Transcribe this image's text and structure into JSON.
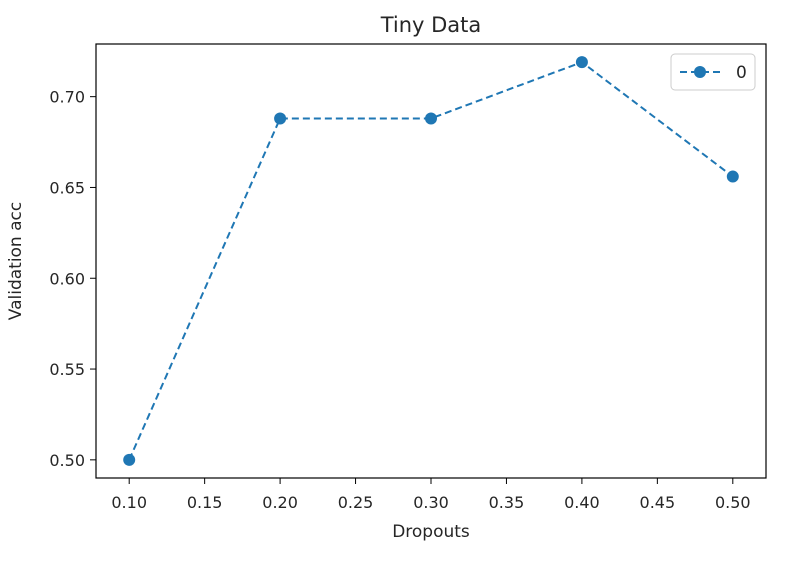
{
  "chart_data": {
    "type": "line",
    "title": "Tiny Data",
    "xlabel": "Dropouts",
    "ylabel": "Validation acc",
    "x": [
      0.1,
      0.2,
      0.3,
      0.4,
      0.5
    ],
    "series": [
      {
        "name": "0",
        "values": [
          0.5,
          0.688,
          0.688,
          0.719,
          0.656
        ],
        "color": "#1f77b4",
        "line_style": "dashed",
        "marker": "circle"
      }
    ],
    "xlim": [
      0.078,
      0.522
    ],
    "ylim": [
      0.49,
      0.729
    ],
    "xticks": [
      "0.10",
      "0.15",
      "0.20",
      "0.25",
      "0.30",
      "0.35",
      "0.40",
      "0.45",
      "0.50"
    ],
    "yticks": [
      "0.50",
      "0.55",
      "0.60",
      "0.65",
      "0.70"
    ],
    "grid": false,
    "legend_position": "top-right"
  }
}
